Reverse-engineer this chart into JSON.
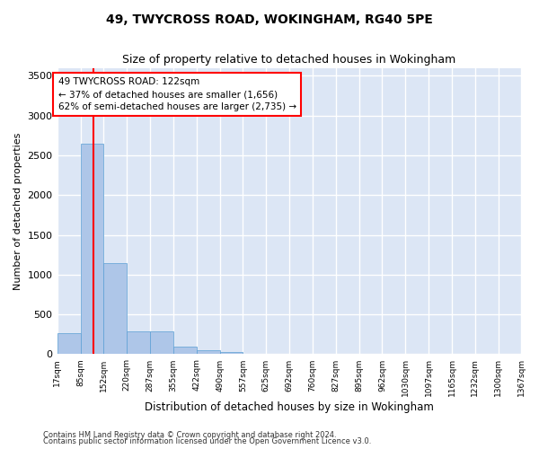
{
  "title1": "49, TWYCROSS ROAD, WOKINGHAM, RG40 5PE",
  "title2": "Size of property relative to detached houses in Wokingham",
  "xlabel": "Distribution of detached houses by size in Wokingham",
  "ylabel": "Number of detached properties",
  "footnote1": "Contains HM Land Registry data © Crown copyright and database right 2024.",
  "footnote2": "Contains public sector information licensed under the Open Government Licence v3.0.",
  "property_size": 122,
  "annotation_line1": "49 TWYCROSS ROAD: 122sqm",
  "annotation_line2": "← 37% of detached houses are smaller (1,656)",
  "annotation_line3": "62% of semi-detached houses are larger (2,735) →",
  "bar_color": "#aec6e8",
  "bar_edge_color": "#5a9fd4",
  "vline_color": "red",
  "background_color": "#dce6f5",
  "grid_color": "#ffffff",
  "ylim": [
    0,
    3600
  ],
  "yticks": [
    0,
    500,
    1000,
    1500,
    2000,
    2500,
    3000,
    3500
  ],
  "bin_edges": [
    17,
    85,
    152,
    220,
    287,
    355,
    422,
    490,
    557,
    625,
    692,
    760,
    827,
    895,
    962,
    1030,
    1097,
    1165,
    1232,
    1300,
    1367
  ],
  "bin_labels": [
    "17sqm",
    "85sqm",
    "152sqm",
    "220sqm",
    "287sqm",
    "355sqm",
    "422sqm",
    "490sqm",
    "557sqm",
    "625sqm",
    "692sqm",
    "760sqm",
    "827sqm",
    "895sqm",
    "962sqm",
    "1030sqm",
    "1097sqm",
    "1165sqm",
    "1232sqm",
    "1300sqm",
    "1367sqm"
  ],
  "bar_heights": [
    270,
    2650,
    1150,
    285,
    285,
    95,
    50,
    30,
    0,
    0,
    0,
    0,
    0,
    0,
    0,
    0,
    0,
    0,
    0,
    0
  ]
}
